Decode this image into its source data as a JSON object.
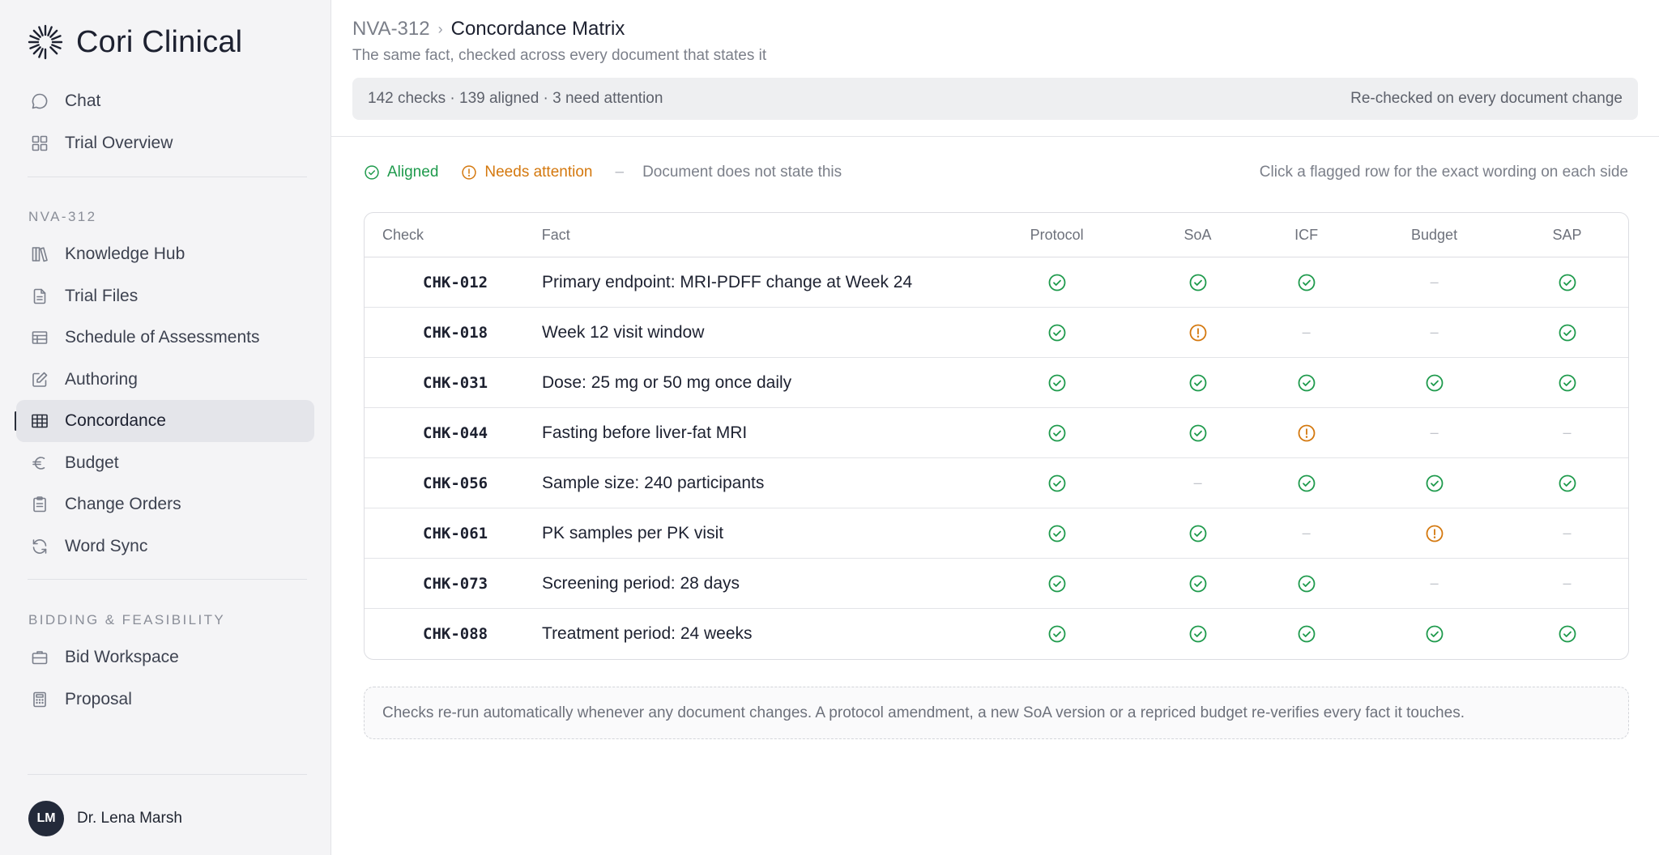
{
  "brand": {
    "name": "Cori Clinical"
  },
  "sidebar": {
    "top_items": [
      {
        "label": "Chat",
        "icon": "chat-bubble-icon"
      },
      {
        "label": "Trial Overview",
        "icon": "grid-icon"
      }
    ],
    "project_label": "NVA-312",
    "project_items": [
      {
        "label": "Knowledge Hub",
        "icon": "books-icon"
      },
      {
        "label": "Trial Files",
        "icon": "file-icon"
      },
      {
        "label": "Schedule of Assessments",
        "icon": "table-icon"
      },
      {
        "label": "Authoring",
        "icon": "pencil-square-icon"
      },
      {
        "label": "Concordance",
        "icon": "grid-table-icon",
        "active": true
      },
      {
        "label": "Budget",
        "icon": "euro-icon"
      },
      {
        "label": "Change Orders",
        "icon": "clipboard-icon"
      },
      {
        "label": "Word Sync",
        "icon": "refresh-icon"
      }
    ],
    "bidding_label": "BIDDING & FEASIBILITY",
    "bidding_items": [
      {
        "label": "Bid Workspace",
        "icon": "briefcase-icon"
      },
      {
        "label": "Proposal",
        "icon": "calculator-icon"
      }
    ],
    "user": {
      "initials": "LM",
      "name": "Dr. Lena Marsh"
    }
  },
  "header": {
    "project": "NVA-312",
    "separator": "›",
    "title": "Concordance Matrix",
    "subtitle": "The same fact, checked across every document that states it",
    "summary": "142 checks · 139 aligned · 3 need attention",
    "recheck_note": "Re-checked on every document change"
  },
  "legend": {
    "aligned": "Aligned",
    "attention": "Needs attention",
    "dash": "–",
    "not_stated": "Document does not state this",
    "hint": "Click a flagged row for the exact wording on each side"
  },
  "colors": {
    "aligned": "#1e9a4c",
    "attention": "#d4780e",
    "not_stated": "#c2c5cb"
  },
  "table": {
    "columns": [
      "Check",
      "Fact",
      "Protocol",
      "SoA",
      "ICF",
      "Budget",
      "SAP"
    ],
    "rows": [
      {
        "id": "CHK-012",
        "fact": "Primary endpoint: MRI-PDFF change at Week 24",
        "status": [
          "aligned",
          "aligned",
          "aligned",
          "none",
          "aligned"
        ]
      },
      {
        "id": "CHK-018",
        "fact": "Week 12 visit window",
        "status": [
          "aligned",
          "attention",
          "none",
          "none",
          "aligned"
        ]
      },
      {
        "id": "CHK-031",
        "fact": "Dose: 25 mg or 50 mg once daily",
        "status": [
          "aligned",
          "aligned",
          "aligned",
          "aligned",
          "aligned"
        ]
      },
      {
        "id": "CHK-044",
        "fact": "Fasting before liver-fat MRI",
        "status": [
          "aligned",
          "aligned",
          "attention",
          "none",
          "none"
        ]
      },
      {
        "id": "CHK-056",
        "fact": "Sample size: 240 participants",
        "status": [
          "aligned",
          "none",
          "aligned",
          "aligned",
          "aligned"
        ]
      },
      {
        "id": "CHK-061",
        "fact": "PK samples per PK visit",
        "status": [
          "aligned",
          "aligned",
          "none",
          "attention",
          "none"
        ]
      },
      {
        "id": "CHK-073",
        "fact": "Screening period: 28 days",
        "status": [
          "aligned",
          "aligned",
          "aligned",
          "none",
          "none"
        ]
      },
      {
        "id": "CHK-088",
        "fact": "Treatment period: 24 weeks",
        "status": [
          "aligned",
          "aligned",
          "aligned",
          "aligned",
          "aligned"
        ]
      }
    ]
  },
  "footer_note": "Checks re-run automatically whenever any document changes. A protocol amendment, a new SoA version or a repriced budget re-verifies every fact it touches."
}
